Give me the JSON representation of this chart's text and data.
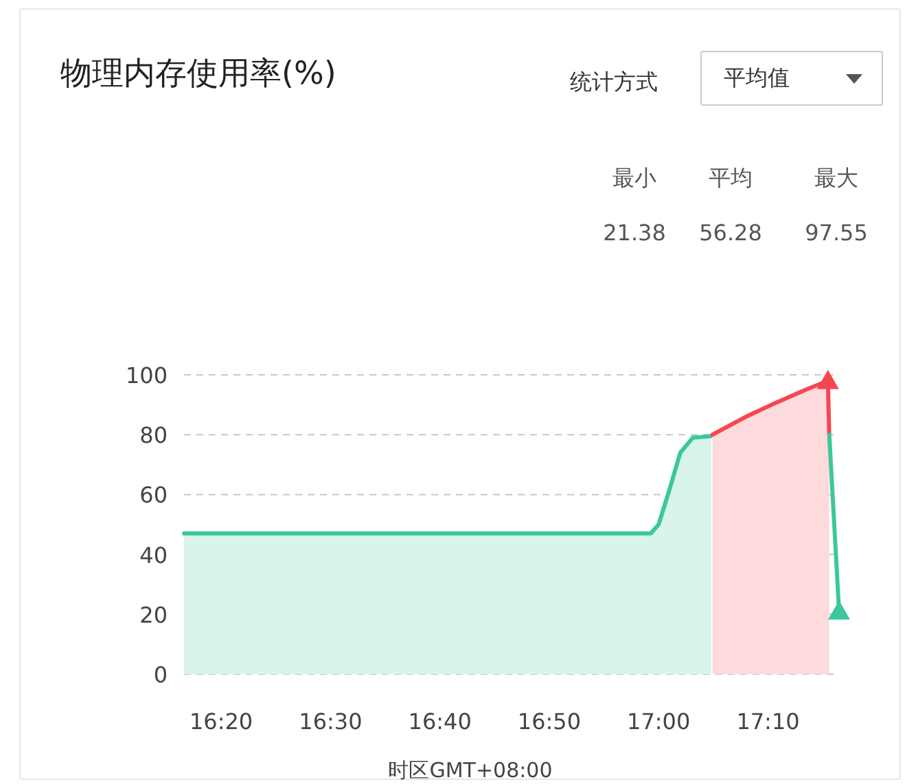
{
  "chart_data": {
    "type": "area",
    "title": "物理内存使用率(%)",
    "xlabel": "时区GMT+08:00",
    "annotations": [
      "统计方式",
      "平均值",
      "最小",
      "平均",
      "最大",
      "21.38",
      "56.28",
      "97.55"
    ],
    "xlim": [
      16.2767,
      17.275
    ],
    "ylim": [
      0,
      100
    ],
    "yticks": [
      0,
      20,
      40,
      60,
      80,
      100
    ],
    "xticks": [
      {
        "value": 16.3333,
        "label": "16:20"
      },
      {
        "value": 16.5,
        "label": "16:30"
      },
      {
        "value": 16.6667,
        "label": "16:40"
      },
      {
        "value": 16.8333,
        "label": "16:50"
      },
      {
        "value": 17.0,
        "label": "17:00"
      },
      {
        "value": 17.1667,
        "label": "17:10"
      }
    ],
    "grid": "y",
    "series": [
      {
        "color": "#3cc79c",
        "x": [
          16.2767,
          16.988,
          17.0,
          17.017,
          17.033,
          17.052,
          17.08
        ],
        "values": [
          47,
          47,
          50,
          62,
          74,
          79,
          79.5
        ]
      },
      {
        "color": "#f5474f",
        "x": [
          17.082,
          17.133,
          17.172,
          17.224,
          17.258,
          17.26
        ],
        "values": [
          80,
          86,
          90,
          95,
          98,
          80
        ]
      },
      {
        "type": "line",
        "color": "#3cc79c",
        "x": [
          17.26,
          17.275
        ],
        "values": [
          80,
          21
        ]
      },
      {
        "type": "scatter",
        "marker": "triangle",
        "color": "#f5474f",
        "x": [
          17.258
        ],
        "values": [
          98
        ]
      },
      {
        "type": "scatter",
        "marker": "triangle",
        "color": "#3cc79c",
        "x": [
          17.275
        ],
        "values": [
          21
        ]
      }
    ]
  }
}
